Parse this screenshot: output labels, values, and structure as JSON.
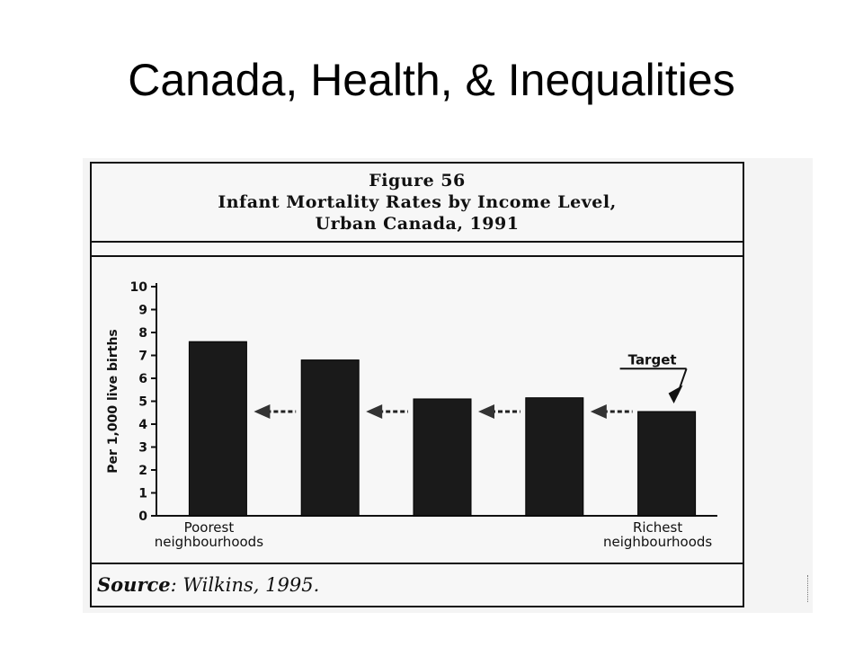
{
  "slide": {
    "title": "Canada, Health, & Inequalities"
  },
  "figure": {
    "number": "Figure 56",
    "title_line1": "Infant Mortality Rates by Income Level,",
    "title_line2": "Urban Canada, 1991",
    "source_label": "Source",
    "source_text": ": Wilkins, 1995."
  },
  "chart_data": {
    "type": "bar",
    "categories": [
      "Poorest neighbourhoods",
      "",
      "",
      "",
      "Richest neighbourhoods"
    ],
    "category_label_lines": [
      [
        "Poorest",
        "neighbourhoods"
      ],
      [],
      [],
      [],
      [
        "Richest",
        "neighbourhoods"
      ]
    ],
    "values": [
      7.6,
      6.8,
      5.1,
      5.15,
      4.55
    ],
    "ylabel": "Per 1,000 live births",
    "ylim": [
      0,
      10
    ],
    "yticks": [
      "0",
      "1",
      "2",
      "3",
      "4",
      "5",
      "6",
      "7",
      "8",
      "9",
      "10"
    ],
    "annotation": "Target",
    "bar_color": "#1a1a1a",
    "grid": false
  }
}
